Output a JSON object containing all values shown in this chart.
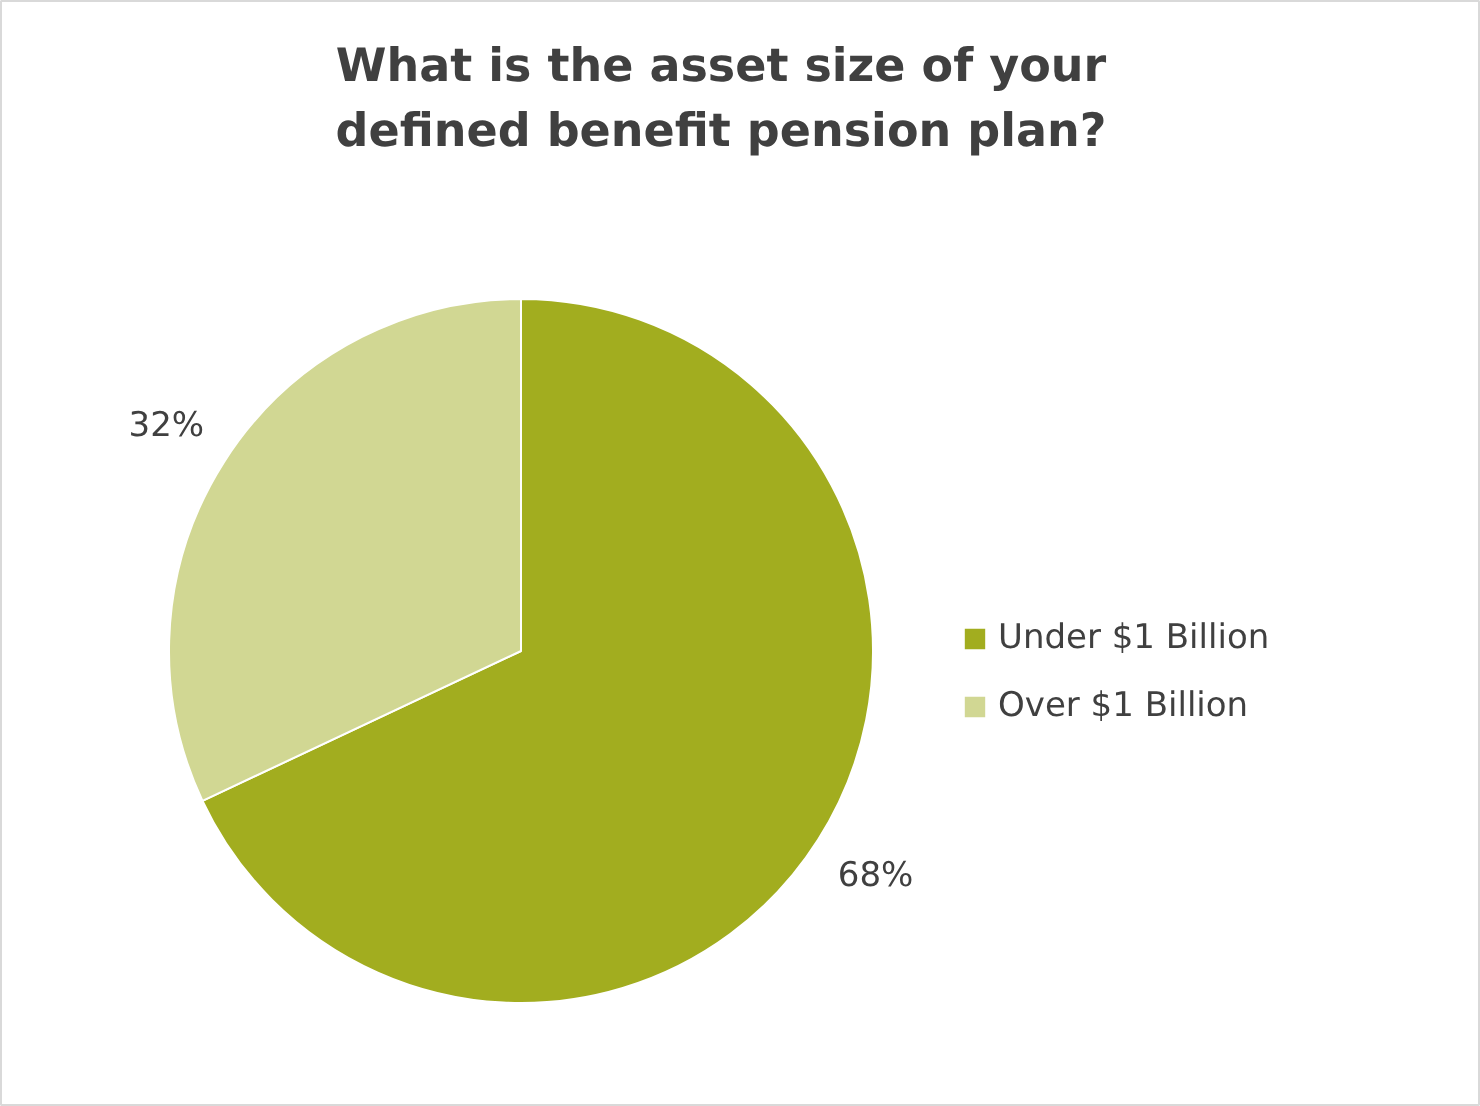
{
  "chart_data": {
    "type": "pie",
    "title": "What is the asset size of your defined benefit pension plan?",
    "categories": [
      "Under $1 Billion",
      "Over $1 Billion"
    ],
    "values": [
      68,
      32
    ],
    "colors": [
      "#a2ad1f",
      "#d1d793"
    ],
    "value_labels": [
      "68%",
      "32%"
    ],
    "legend": "right"
  }
}
